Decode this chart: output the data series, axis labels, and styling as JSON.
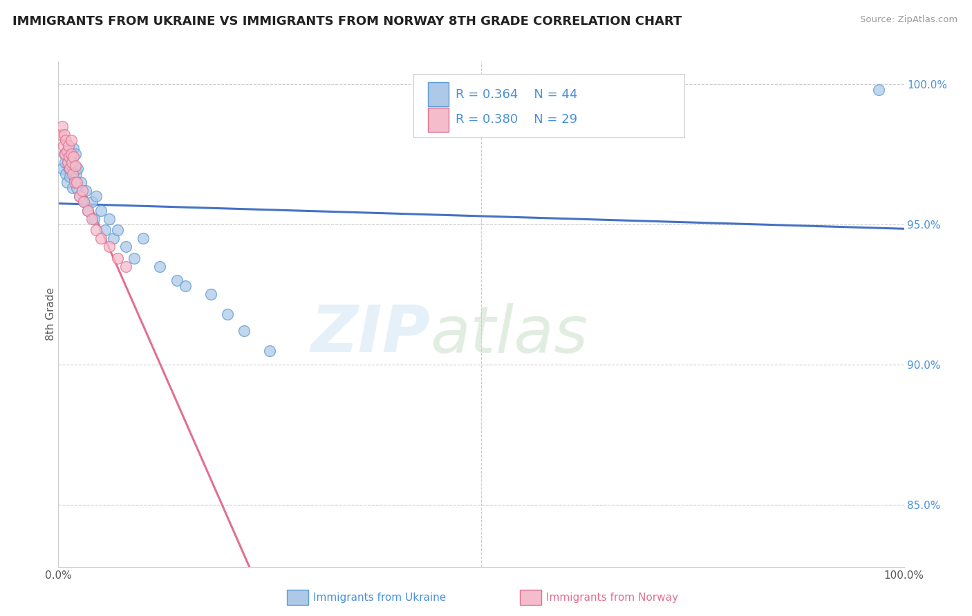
{
  "title": "IMMIGRANTS FROM UKRAINE VS IMMIGRANTS FROM NORWAY 8TH GRADE CORRELATION CHART",
  "source": "Source: ZipAtlas.com",
  "xlabel_label": "Immigrants from Ukraine",
  "ylabel_label": "8th Grade",
  "xlabel2_label": "Immigrants from Norway",
  "xlim": [
    0,
    1.0
  ],
  "ylim": [
    0.828,
    1.008
  ],
  "y_ticks": [
    0.85,
    0.9,
    0.95,
    1.0
  ],
  "y_tick_labels": [
    "85.0%",
    "90.0%",
    "95.0%",
    "100.0%"
  ],
  "x_ticks": [
    0.0,
    1.0
  ],
  "x_tick_labels": [
    "0.0%",
    "100.0%"
  ],
  "legend_R1": "R = 0.364",
  "legend_N1": "N = 44",
  "legend_R2": "R = 0.380",
  "legend_N2": "N = 29",
  "ukraine_color": "#aec9e8",
  "norway_color": "#f5bccb",
  "ukraine_edge_color": "#5b9bd5",
  "norway_edge_color": "#e07090",
  "ukraine_line_color": "#4472c4",
  "norway_line_color": "#e07090",
  "ukraine_x": [
    0.005,
    0.007,
    0.008,
    0.009,
    0.01,
    0.011,
    0.012,
    0.013,
    0.014,
    0.015,
    0.016,
    0.017,
    0.018,
    0.018,
    0.019,
    0.02,
    0.02,
    0.021,
    0.022,
    0.023,
    0.025,
    0.027,
    0.03,
    0.032,
    0.035,
    0.04,
    0.042,
    0.045,
    0.05,
    0.055,
    0.06,
    0.065,
    0.07,
    0.08,
    0.09,
    0.1,
    0.12,
    0.14,
    0.15,
    0.18,
    0.2,
    0.22,
    0.25,
    0.97
  ],
  "ukraine_y": [
    0.97,
    0.975,
    0.972,
    0.968,
    0.965,
    0.972,
    0.978,
    0.97,
    0.967,
    0.974,
    0.969,
    0.963,
    0.971,
    0.977,
    0.966,
    0.97,
    0.975,
    0.968,
    0.963,
    0.97,
    0.96,
    0.965,
    0.958,
    0.962,
    0.955,
    0.958,
    0.952,
    0.96,
    0.955,
    0.948,
    0.952,
    0.945,
    0.948,
    0.942,
    0.938,
    0.945,
    0.935,
    0.93,
    0.928,
    0.925,
    0.918,
    0.912,
    0.905,
    0.998
  ],
  "norway_x": [
    0.003,
    0.005,
    0.006,
    0.007,
    0.008,
    0.009,
    0.01,
    0.011,
    0.012,
    0.013,
    0.014,
    0.015,
    0.015,
    0.016,
    0.017,
    0.018,
    0.019,
    0.02,
    0.022,
    0.025,
    0.028,
    0.03,
    0.035,
    0.04,
    0.045,
    0.05,
    0.06,
    0.07,
    0.08
  ],
  "norway_y": [
    0.982,
    0.985,
    0.978,
    0.982,
    0.975,
    0.98,
    0.976,
    0.972,
    0.978,
    0.974,
    0.97,
    0.975,
    0.98,
    0.972,
    0.968,
    0.974,
    0.965,
    0.971,
    0.965,
    0.96,
    0.962,
    0.958,
    0.955,
    0.952,
    0.948,
    0.945,
    0.942,
    0.938,
    0.935
  ]
}
